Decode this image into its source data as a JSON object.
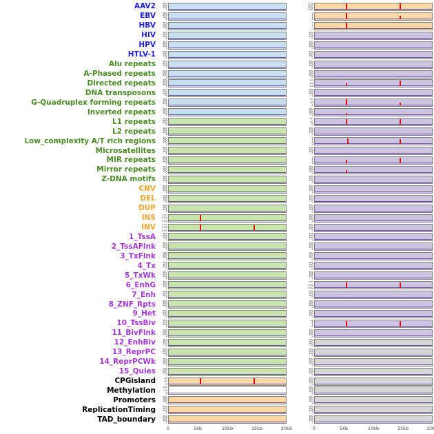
{
  "palette": {
    "label": {
      "virus": "#2323d7",
      "repeat": "#4c8b27",
      "sv": "#f0a633",
      "chromatin": "#a238d2",
      "other": "#000000"
    },
    "panel": {
      "blue": "#c8dff0",
      "green": "#c9e4ad",
      "orange": "#fdd7a6",
      "purple": "#cdc4e1",
      "gray": "#d6d6d6",
      "white": "#ffffff"
    },
    "spike": "#e60000",
    "baseline": "#6a51a3"
  },
  "chart_data": {
    "type": "line",
    "title": "",
    "columns": 2,
    "x_axis": {
      "range_kb": [
        0,
        20
      ],
      "ticks": [
        "0",
        "5kb",
        "10kb",
        "15kb",
        "20kb"
      ]
    },
    "yticks_default": [
      "300",
      "200",
      "100",
      "0"
    ],
    "rows": [
      {
        "label": "AAV2",
        "group": "virus",
        "left": {
          "bg": "blue"
        },
        "right": {
          "bg": "orange",
          "yticks": [
            "0.75",
            "0.50",
            "0.25",
            "0.00"
          ],
          "spikes": [
            [
              0.27,
              0.92
            ],
            [
              0.73,
              0.85
            ]
          ]
        }
      },
      {
        "label": "EBV",
        "group": "virus",
        "left": {
          "bg": "blue"
        },
        "right": {
          "bg": "orange",
          "yticks": [
            "3",
            "2",
            "1",
            "0"
          ],
          "spikes": [
            [
              0.27,
              0.95
            ],
            [
              0.73,
              0.5
            ]
          ]
        }
      },
      {
        "label": "HBV",
        "group": "virus",
        "left": {
          "bg": "blue"
        },
        "right": {
          "bg": "orange",
          "yticks": [
            "2",
            "1",
            "0"
          ],
          "spikes": [
            [
              0.27,
              0.9
            ]
          ]
        }
      },
      {
        "label": "HIV",
        "group": "virus",
        "left": {
          "bg": "blue"
        },
        "right": {
          "bg": "purple"
        }
      },
      {
        "label": "HPV",
        "group": "virus",
        "left": {
          "bg": "blue"
        },
        "right": {
          "bg": "purple"
        }
      },
      {
        "label": "HTLV-1",
        "group": "virus",
        "left": {
          "bg": "blue"
        },
        "right": {
          "bg": "purple"
        }
      },
      {
        "label": "Alu repeats",
        "group": "repeat",
        "left": {
          "bg": "blue"
        },
        "right": {
          "bg": "purple"
        }
      },
      {
        "label": "A-Phased repeats",
        "group": "repeat",
        "left": {
          "bg": "blue"
        },
        "right": {
          "bg": "purple"
        }
      },
      {
        "label": "Directed repeats",
        "group": "repeat",
        "left": {
          "bg": "blue"
        },
        "right": {
          "bg": "purple",
          "yticks": [
            "2.0",
            "1.0",
            "0.0"
          ],
          "spikes": [
            [
              0.27,
              0.45
            ],
            [
              0.73,
              0.85
            ]
          ]
        }
      },
      {
        "label": "DNA transposons",
        "group": "repeat",
        "left": {
          "bg": "blue"
        },
        "right": {
          "bg": "purple"
        }
      },
      {
        "label": "G-Quadruplex forming repeats",
        "group": "repeat",
        "left": {
          "bg": "blue"
        },
        "right": {
          "bg": "purple",
          "yticks": [
            "40",
            "20",
            "0"
          ],
          "spikes": [
            [
              0.27,
              0.9
            ],
            [
              0.73,
              0.4
            ]
          ]
        }
      },
      {
        "label": "Inverted repeats",
        "group": "repeat",
        "left": {
          "bg": "blue"
        },
        "right": {
          "bg": "purple",
          "spikes": [
            [
              0.27,
              0.35
            ]
          ]
        }
      },
      {
        "label": "L1 repeats",
        "group": "repeat",
        "left": {
          "bg": "green"
        },
        "right": {
          "bg": "purple",
          "yticks": [
            "80",
            "40",
            "0"
          ],
          "spikes": [
            [
              0.27,
              0.85
            ],
            [
              0.73,
              0.8
            ]
          ]
        }
      },
      {
        "label": "L2 repeats",
        "group": "repeat",
        "left": {
          "bg": "green"
        },
        "right": {
          "bg": "purple"
        }
      },
      {
        "label": "Low_complexity A/T rich regions",
        "group": "repeat",
        "left": {
          "bg": "green"
        },
        "right": {
          "bg": "purple",
          "yticks": [
            "6",
            "4",
            "2",
            "0"
          ],
          "spikes": [
            [
              0.28,
              0.8
            ],
            [
              0.73,
              0.7
            ]
          ]
        }
      },
      {
        "label": "Microsatellites",
        "group": "repeat",
        "left": {
          "bg": "green"
        },
        "right": {
          "bg": "purple"
        }
      },
      {
        "label": "MIR repeats",
        "group": "repeat",
        "left": {
          "bg": "green"
        },
        "right": {
          "bg": "purple",
          "yticks": [
            "3",
            "2",
            "1",
            "0"
          ],
          "spikes": [
            [
              0.27,
              0.45
            ],
            [
              0.73,
              0.8
            ]
          ]
        }
      },
      {
        "label": "Mirror repeats",
        "group": "repeat",
        "left": {
          "bg": "green"
        },
        "right": {
          "bg": "purple",
          "spikes": [
            [
              0.27,
              0.35
            ]
          ]
        }
      },
      {
        "label": "Z-DNA motifs",
        "group": "repeat",
        "left": {
          "bg": "green"
        },
        "right": {
          "bg": "purple"
        }
      },
      {
        "label": "CNV",
        "group": "sv",
        "left": {
          "bg": "green"
        },
        "right": {
          "bg": "purple"
        }
      },
      {
        "label": "DEL",
        "group": "sv",
        "left": {
          "bg": "green"
        },
        "right": {
          "bg": "purple"
        }
      },
      {
        "label": "DUP",
        "group": "sv",
        "left": {
          "bg": "green"
        },
        "right": {
          "bg": "purple"
        }
      },
      {
        "label": "INS",
        "group": "sv",
        "left": {
          "bg": "green",
          "yticks": [
            "1.00",
            "0.50",
            "0.00"
          ],
          "spikes": [
            [
              0.27,
              0.9
            ]
          ]
        },
        "right": {
          "bg": "purple"
        }
      },
      {
        "label": "INV",
        "group": "sv",
        "left": {
          "bg": "green",
          "yticks": [
            "1.00",
            "0.50",
            "0.00"
          ],
          "spikes": [
            [
              0.27,
              0.9
            ],
            [
              0.73,
              0.75
            ]
          ]
        },
        "right": {
          "bg": "purple"
        }
      },
      {
        "label": "1_TssA",
        "group": "chromatin",
        "left": {
          "bg": "green"
        },
        "right": {
          "bg": "purple"
        }
      },
      {
        "label": "2_TssAFlnk",
        "group": "chromatin",
        "left": {
          "bg": "green"
        },
        "right": {
          "bg": "purple"
        }
      },
      {
        "label": "3_TxFlnk",
        "group": "chromatin",
        "left": {
          "bg": "green"
        },
        "right": {
          "bg": "purple"
        }
      },
      {
        "label": "4_Tx",
        "group": "chromatin",
        "left": {
          "bg": "green"
        },
        "right": {
          "bg": "purple"
        }
      },
      {
        "label": "5_TxWk",
        "group": "chromatin",
        "left": {
          "bg": "green"
        },
        "right": {
          "bg": "purple"
        }
      },
      {
        "label": "6_EnhG",
        "group": "chromatin",
        "left": {
          "bg": "green"
        },
        "right": {
          "bg": "purple",
          "yticks": [
            "1.00",
            "0.50",
            "0.00"
          ],
          "spikes": [
            [
              0.27,
              0.8
            ],
            [
              0.73,
              0.8
            ]
          ]
        }
      },
      {
        "label": "7_Enh",
        "group": "chromatin",
        "left": {
          "bg": "green"
        },
        "right": {
          "bg": "purple"
        }
      },
      {
        "label": "8_ZNF_Rpts",
        "group": "chromatin",
        "left": {
          "bg": "green"
        },
        "right": {
          "bg": "purple"
        }
      },
      {
        "label": "9_Het",
        "group": "chromatin",
        "left": {
          "bg": "green"
        },
        "right": {
          "bg": "purple"
        }
      },
      {
        "label": "10_TssBiv",
        "group": "chromatin",
        "left": {
          "bg": "green"
        },
        "right": {
          "bg": "purple",
          "yticks": [
            "12",
            "8",
            "4",
            "0"
          ],
          "spikes": [
            [
              0.27,
              0.8
            ],
            [
              0.73,
              0.75
            ]
          ]
        }
      },
      {
        "label": "11_BivFlnk",
        "group": "chromatin",
        "left": {
          "bg": "green"
        },
        "right": {
          "bg": "purple"
        }
      },
      {
        "label": "12_EnhBiv",
        "group": "chromatin",
        "left": {
          "bg": "green"
        },
        "right": {
          "bg": "gray"
        }
      },
      {
        "label": "13_ReprPC",
        "group": "chromatin",
        "left": {
          "bg": "green"
        },
        "right": {
          "bg": "gray"
        }
      },
      {
        "label": "14_ReprPCWk",
        "group": "chromatin",
        "left": {
          "bg": "green"
        },
        "right": {
          "bg": "gray"
        }
      },
      {
        "label": "15_Quies",
        "group": "chromatin",
        "left": {
          "bg": "green"
        },
        "right": {
          "bg": "gray"
        }
      },
      {
        "label": "CPGisland",
        "group": "other",
        "left": {
          "bg": "orange",
          "yticks": [
            "80",
            "40",
            "0"
          ],
          "spikes": [
            [
              0.27,
              0.9
            ],
            [
              0.73,
              0.85
            ]
          ]
        },
        "right": {
          "bg": "gray"
        }
      },
      {
        "label": "Methylation",
        "group": "other",
        "left": {
          "bg": "white",
          "yticks": [
            "100",
            "50",
            "0"
          ]
        },
        "right": {
          "bg": "gray"
        }
      },
      {
        "label": "Promoters",
        "group": "other",
        "left": {
          "bg": "orange"
        },
        "right": {
          "bg": "gray"
        }
      },
      {
        "label": "ReplicationTiming",
        "group": "other",
        "left": {
          "bg": "orange"
        },
        "right": {
          "bg": "gray"
        }
      },
      {
        "label": "TAD_boundary",
        "group": "other",
        "left": {
          "bg": "orange"
        },
        "right": {
          "bg": "gray"
        }
      }
    ]
  }
}
